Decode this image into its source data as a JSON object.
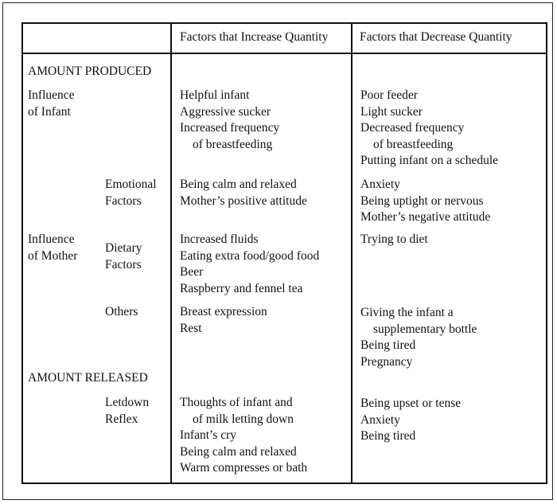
{
  "header": {
    "col_increase": "Factors that Increase Quantity",
    "col_decrease": "Factors that Decrease Quantity"
  },
  "sections": {
    "produced": "AMOUNT PRODUCED",
    "released": "AMOUNT RELEASED"
  },
  "infant": {
    "label": [
      "Influence",
      "of Infant"
    ],
    "increase": [
      "Helpful infant",
      "Aggressive sucker",
      "Increased frequency",
      "of breastfeeding"
    ],
    "decrease": [
      "Poor feeder",
      "Light sucker",
      "Decreased frequency",
      "of breastfeeding",
      "Putting infant on a schedule"
    ]
  },
  "mother": {
    "label": [
      "Influence",
      "of Mother"
    ]
  },
  "emotional": {
    "label": [
      "Emotional",
      "Factors"
    ],
    "increase": [
      "Being calm and relaxed",
      "Mother’s positive attitude"
    ],
    "decrease": [
      "Anxiety",
      "Being uptight or nervous",
      "Mother’s negative attitude"
    ]
  },
  "dietary": {
    "label": [
      "Dietary",
      "Factors"
    ],
    "increase": [
      "Increased fluids",
      "Eating extra food/good food",
      "Beer",
      "Raspberry and fennel tea"
    ],
    "decrease": [
      "Trying to diet"
    ]
  },
  "others": {
    "label": [
      "Others"
    ],
    "increase": [
      "Breast expression",
      "Rest"
    ],
    "decrease": [
      "Giving the infant a",
      "supplementary bottle",
      "Being tired",
      "Pregnancy"
    ]
  },
  "letdown": {
    "label": [
      "Letdown",
      "Reflex"
    ],
    "increase": [
      "Thoughts of infant and",
      "of milk letting down",
      "Infant’s cry",
      "Being calm and relaxed",
      "Warm compresses or bath"
    ],
    "decrease": [
      "Being upset or tense",
      "Anxiety",
      "Being tired"
    ]
  }
}
